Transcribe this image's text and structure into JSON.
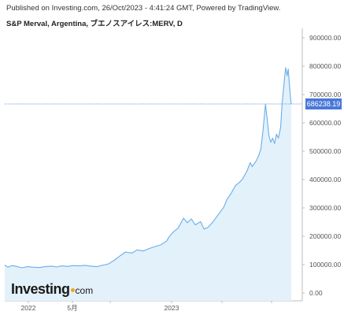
{
  "header": {
    "published": "Published on Investing.com, 26/Oct/2023 - 4:41:24 GMT, Powered by TradingView.",
    "title": "S&P Merval, Argentina, ブエノスアイレス:MERV, D"
  },
  "logo": {
    "main": "Investing",
    "suffix": "com"
  },
  "colors": {
    "line": "#6aaee8",
    "fill": "#e3f1fb",
    "badge": "#4a78d8",
    "priceLine": "#4a78d8",
    "grid": "#dcdcdc"
  },
  "chart_data": {
    "type": "area",
    "title": "S&P Merval, Argentina, ブエノスアイレス:MERV, D",
    "xlabel": "",
    "ylabel": "",
    "x_tick_labels": [
      "2022",
      "5月",
      "2023"
    ],
    "y_tick_labels": [
      "0.00",
      "100000.00",
      "200000.00",
      "300000.00",
      "400000.00",
      "500000.00",
      "600000.00",
      "700000.00",
      "800000.00",
      "900000.00"
    ],
    "ylim": [
      -40000,
      965000
    ],
    "xlim": [
      "2021-10-01",
      "2023-10-26"
    ],
    "last_value_label": "686238.19",
    "last_value": 686238.19,
    "grid": false,
    "series": [
      {
        "values": [
          [
            "2021-10-01",
            92000
          ],
          [
            "2021-10-10",
            84000
          ],
          [
            "2021-10-20",
            90000
          ],
          [
            "2021-11-01",
            87000
          ],
          [
            "2021-11-15",
            82000
          ],
          [
            "2021-12-01",
            86000
          ],
          [
            "2021-12-15",
            84000
          ],
          [
            "2022-01-01",
            83000
          ],
          [
            "2022-01-15",
            86000
          ],
          [
            "2022-02-01",
            88000
          ],
          [
            "2022-02-15",
            85000
          ],
          [
            "2022-03-01",
            89000
          ],
          [
            "2022-03-15",
            87000
          ],
          [
            "2022-04-01",
            90000
          ],
          [
            "2022-04-15",
            89000
          ],
          [
            "2022-05-01",
            91000
          ],
          [
            "2022-05-15",
            88000
          ],
          [
            "2022-06-01",
            86000
          ],
          [
            "2022-06-15",
            91000
          ],
          [
            "2022-07-01",
            96000
          ],
          [
            "2022-07-15",
            108000
          ],
          [
            "2022-08-01",
            126000
          ],
          [
            "2022-08-15",
            140000
          ],
          [
            "2022-09-01",
            136000
          ],
          [
            "2022-09-15",
            148000
          ],
          [
            "2022-10-01",
            144000
          ],
          [
            "2022-10-15",
            152000
          ],
          [
            "2022-11-01",
            160000
          ],
          [
            "2022-11-15",
            166000
          ],
          [
            "2022-12-01",
            180000
          ],
          [
            "2022-12-10",
            200000
          ],
          [
            "2022-12-20",
            215000
          ],
          [
            "2023-01-01",
            228000
          ],
          [
            "2023-01-15",
            265000
          ],
          [
            "2023-01-25",
            248000
          ],
          [
            "2023-02-05",
            262000
          ],
          [
            "2023-02-15",
            240000
          ],
          [
            "2023-03-01",
            252000
          ],
          [
            "2023-03-10",
            225000
          ],
          [
            "2023-03-20",
            230000
          ],
          [
            "2023-04-01",
            248000
          ],
          [
            "2023-04-15",
            275000
          ],
          [
            "2023-05-01",
            305000
          ],
          [
            "2023-05-10",
            335000
          ],
          [
            "2023-05-20",
            355000
          ],
          [
            "2023-06-01",
            385000
          ],
          [
            "2023-06-10",
            395000
          ],
          [
            "2023-06-20",
            410000
          ],
          [
            "2023-07-01",
            438000
          ],
          [
            "2023-07-10",
            470000
          ],
          [
            "2023-07-15",
            455000
          ],
          [
            "2023-07-25",
            475000
          ],
          [
            "2023-08-01",
            495000
          ],
          [
            "2023-08-07",
            520000
          ],
          [
            "2023-08-12",
            580000
          ],
          [
            "2023-08-16",
            640000
          ],
          [
            "2023-08-19",
            685000
          ],
          [
            "2023-08-23",
            640000
          ],
          [
            "2023-08-28",
            570000
          ],
          [
            "2023-09-02",
            545000
          ],
          [
            "2023-09-07",
            560000
          ],
          [
            "2023-09-12",
            540000
          ],
          [
            "2023-09-17",
            575000
          ],
          [
            "2023-09-22",
            560000
          ],
          [
            "2023-09-28",
            600000
          ],
          [
            "2023-10-02",
            690000
          ],
          [
            "2023-10-07",
            760000
          ],
          [
            "2023-10-11",
            820000
          ],
          [
            "2023-10-15",
            790000
          ],
          [
            "2023-10-18",
            815000
          ],
          [
            "2023-10-21",
            760000
          ],
          [
            "2023-10-24",
            710000
          ],
          [
            "2023-10-26",
            686238.19
          ]
        ]
      }
    ]
  }
}
